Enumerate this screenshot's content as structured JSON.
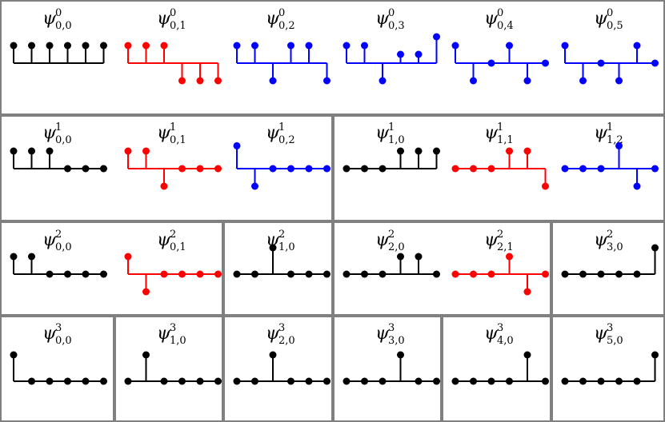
{
  "colors": {
    "black": "#000000",
    "red": "#ff0000",
    "blue": "#0000ff",
    "border": "#808080"
  },
  "rows": [
    {
      "level": 0,
      "cells": [
        {
          "span": 6,
          "functions": [
            {
              "sup": "0",
              "sub": "0,0",
              "color": "black",
              "values": [
                1,
                1,
                1,
                1,
                1,
                1
              ]
            },
            {
              "sup": "0",
              "sub": "0,1",
              "color": "red",
              "values": [
                1,
                1,
                1,
                -1,
                -1,
                -1
              ]
            },
            {
              "sup": "0",
              "sub": "0,2",
              "color": "blue",
              "values": [
                1,
                1,
                -1,
                1,
                1,
                -1
              ]
            },
            {
              "sup": "0",
              "sub": "0,3",
              "color": "blue",
              "values": [
                1,
                1,
                -1,
                0.5,
                0.5,
                1.5
              ]
            },
            {
              "sup": "0",
              "sub": "0,4",
              "color": "blue",
              "values": [
                1,
                -1,
                0,
                1,
                -1,
                0
              ]
            },
            {
              "sup": "0",
              "sub": "0,5",
              "color": "blue",
              "values": [
                1,
                -1,
                0,
                -1,
                1,
                0
              ]
            }
          ]
        }
      ]
    },
    {
      "level": 1,
      "cells": [
        {
          "span": 3,
          "functions": [
            {
              "sup": "1",
              "sub": "0,0",
              "color": "black",
              "values": [
                1,
                1,
                1,
                0,
                0,
                0
              ]
            },
            {
              "sup": "1",
              "sub": "0,1",
              "color": "red",
              "values": [
                1,
                1,
                -1,
                0,
                0,
                0
              ]
            },
            {
              "sup": "1",
              "sub": "0,2",
              "color": "blue",
              "values": [
                1.3,
                -1,
                0,
                0,
                0,
                0
              ]
            }
          ]
        },
        {
          "span": 3,
          "functions": [
            {
              "sup": "1",
              "sub": "1,0",
              "color": "black",
              "values": [
                0,
                0,
                0,
                1,
                1,
                1
              ]
            },
            {
              "sup": "1",
              "sub": "1,1",
              "color": "red",
              "values": [
                0,
                0,
                0,
                1,
                1,
                -1
              ]
            },
            {
              "sup": "1",
              "sub": "1,2",
              "color": "blue",
              "values": [
                0,
                0,
                0,
                1.3,
                -1,
                0
              ]
            }
          ]
        }
      ]
    },
    {
      "level": 2,
      "cells": [
        {
          "span": 2,
          "functions": [
            {
              "sup": "2",
              "sub": "0,0",
              "color": "black",
              "values": [
                1,
                1,
                0,
                0,
                0,
                0
              ]
            },
            {
              "sup": "2",
              "sub": "0,1",
              "color": "red",
              "values": [
                1,
                -1,
                0,
                0,
                0,
                0
              ]
            }
          ]
        },
        {
          "span": 1,
          "functions": [
            {
              "sup": "2",
              "sub": "1,0",
              "color": "black",
              "values": [
                0,
                0,
                1.5,
                0,
                0,
                0
              ]
            }
          ]
        },
        {
          "span": 2,
          "functions": [
            {
              "sup": "2",
              "sub": "2,0",
              "color": "black",
              "values": [
                0,
                0,
                0,
                1,
                1,
                0
              ]
            },
            {
              "sup": "2",
              "sub": "2,1",
              "color": "red",
              "values": [
                0,
                0,
                0,
                1,
                -1,
                0
              ]
            }
          ]
        },
        {
          "span": 1,
          "functions": [
            {
              "sup": "2",
              "sub": "3,0",
              "color": "black",
              "values": [
                0,
                0,
                0,
                0,
                0,
                1.5
              ]
            }
          ]
        }
      ]
    },
    {
      "level": 3,
      "cells": [
        {
          "span": 1,
          "functions": [
            {
              "sup": "3",
              "sub": "0,0",
              "color": "black",
              "values": [
                1.5,
                0,
                0,
                0,
                0,
                0
              ]
            }
          ]
        },
        {
          "span": 1,
          "functions": [
            {
              "sup": "3",
              "sub": "1,0",
              "color": "black",
              "values": [
                0,
                1.5,
                0,
                0,
                0,
                0
              ]
            }
          ]
        },
        {
          "span": 1,
          "functions": [
            {
              "sup": "3",
              "sub": "2,0",
              "color": "black",
              "values": [
                0,
                0,
                1.5,
                0,
                0,
                0
              ]
            }
          ]
        },
        {
          "span": 1,
          "functions": [
            {
              "sup": "3",
              "sub": "3,0",
              "color": "black",
              "values": [
                0,
                0,
                0,
                1.5,
                0,
                0
              ]
            }
          ]
        },
        {
          "span": 1,
          "functions": [
            {
              "sup": "3",
              "sub": "4,0",
              "color": "black",
              "values": [
                0,
                0,
                0,
                0,
                1.5,
                0
              ]
            }
          ]
        },
        {
          "span": 1,
          "functions": [
            {
              "sup": "3",
              "sub": "5,0",
              "color": "black",
              "values": [
                0,
                0,
                0,
                0,
                0,
                1.5
              ]
            }
          ]
        }
      ]
    }
  ]
}
